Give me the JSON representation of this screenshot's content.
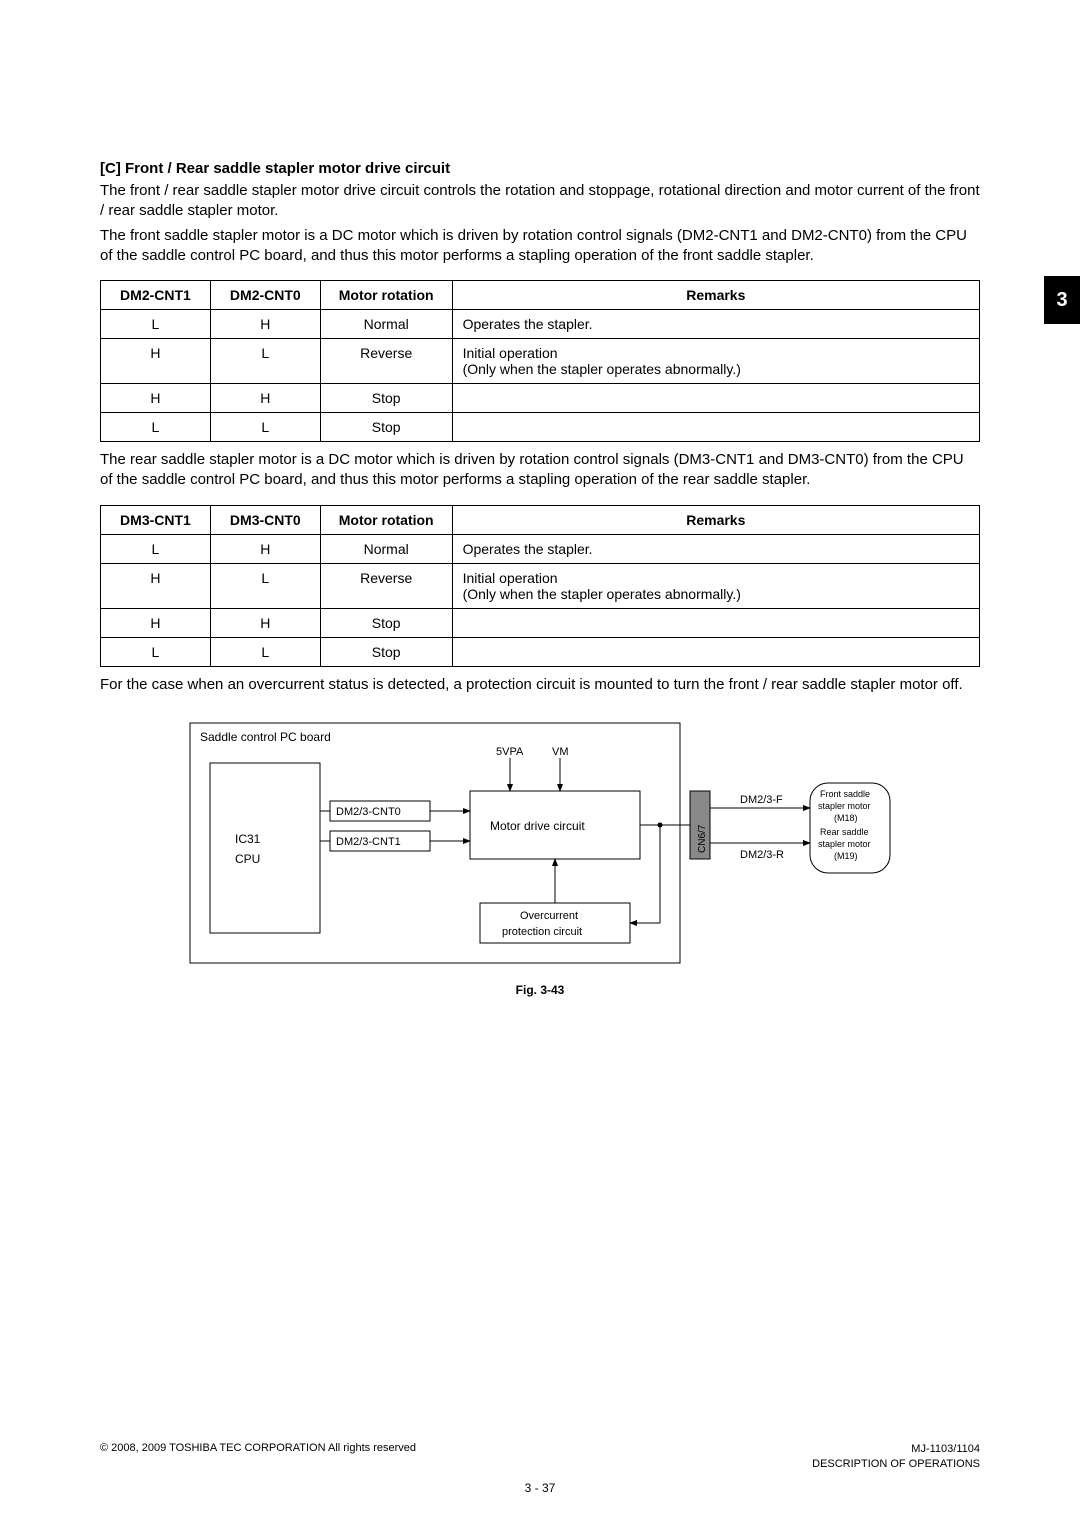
{
  "side_tab": "3",
  "section": {
    "heading": "[C]   Front / Rear saddle stapler motor drive circuit",
    "p1": "The front / rear saddle stapler motor drive circuit controls the rotation and stoppage, rotational direction and motor current of the front / rear saddle stapler motor.",
    "p2": "The front saddle stapler motor is a DC motor which is driven by rotation control signals (DM2-CNT1 and DM2-CNT0) from the CPU of the saddle control PC board, and thus this motor performs a stapling operation of the front saddle stapler."
  },
  "table1": {
    "headers": [
      "DM2-CNT1",
      "DM2-CNT0",
      "Motor rotation",
      "Remarks"
    ],
    "rows": [
      [
        "L",
        "H",
        "Normal",
        "Operates the stapler."
      ],
      [
        "H",
        "L",
        "Reverse",
        "Initial operation\n(Only when the stapler operates abnormally.)"
      ],
      [
        "H",
        "H",
        "Stop",
        ""
      ],
      [
        "L",
        "L",
        "Stop",
        ""
      ]
    ]
  },
  "mid_para": "The rear saddle stapler motor is a DC motor which is driven by rotation control signals (DM3-CNT1 and DM3-CNT0) from the CPU of the saddle control PC board, and thus this motor performs a stapling operation of the rear saddle stapler.",
  "table2": {
    "headers": [
      "DM3-CNT1",
      "DM3-CNT0",
      "Motor rotation",
      "Remarks"
    ],
    "rows": [
      [
        "L",
        "H",
        "Normal",
        "Operates the stapler."
      ],
      [
        "H",
        "L",
        "Reverse",
        "Initial operation\n(Only when the stapler operates abnormally.)"
      ],
      [
        "H",
        "H",
        "Stop",
        ""
      ],
      [
        "L",
        "L",
        "Stop",
        ""
      ]
    ]
  },
  "post_para": "For the case when an overcurrent status is detected, a protection circuit is mounted to turn the front / rear saddle stapler motor off.",
  "diagram": {
    "type": "flowchart",
    "outer_label": "Saddle control PC board",
    "cpu_box": {
      "line1": "IC31",
      "line2": "CPU"
    },
    "sig_labels": {
      "top": "DM2/3-CNT0",
      "bottom": "DM2/3-CNT1"
    },
    "power_labels": {
      "left": "5VPA",
      "right": "VM"
    },
    "motor_drive": "Motor drive circuit",
    "overcurrent": {
      "l1": "Overcurrent",
      "l2": "protection circuit"
    },
    "conn_label": "CN6/7",
    "out_labels": {
      "top": "DM2/3-F",
      "bottom": "DM2/3-R"
    },
    "motor_box": {
      "l1": "Front saddle",
      "l2": "stapler motor",
      "l3": "(M18)",
      "l4": "Rear saddle",
      "l5": "stapler motor",
      "l6": "(M19)"
    },
    "stroke": "#000000",
    "fill": "#ffffff",
    "font_size_small": 10,
    "font_size_tiny": 9
  },
  "fig_caption": "Fig. 3-43",
  "footer": {
    "copyright": "© 2008, 2009 TOSHIBA TEC CORPORATION All rights reserved",
    "model": "MJ-1103/1104",
    "desc": "DESCRIPTION OF OPERATIONS",
    "page": "3 - 37"
  }
}
